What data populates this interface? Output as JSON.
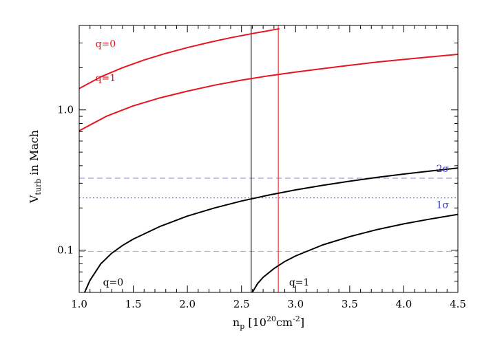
{
  "chart_data": {
    "type": "line",
    "title": "",
    "xlabel": {
      "main": "n",
      "sub": "p",
      "bracket_open": " [10",
      "sup1": "20",
      "unit": "cm",
      "sup2": "-2",
      "bracket_close": "]"
    },
    "ylabel": {
      "main": "V",
      "sub": "turb",
      "rest": " in Mach"
    },
    "xlim": [
      1.0,
      4.5
    ],
    "ylim": [
      0.05,
      4.0
    ],
    "yscale": "log",
    "grid": false,
    "x_ticks": [
      {
        "value": 1.0,
        "label": "1.0"
      },
      {
        "value": 1.5,
        "label": "1.5"
      },
      {
        "value": 2.0,
        "label": "2.0"
      },
      {
        "value": 2.5,
        "label": "2.5"
      },
      {
        "value": 3.0,
        "label": "3.0"
      },
      {
        "value": 3.5,
        "label": "3.5"
      },
      {
        "value": 4.0,
        "label": "4.0"
      },
      {
        "value": 4.5,
        "label": "4.5"
      }
    ],
    "y_ticks": [
      {
        "value": 0.1,
        "label": "0.1"
      },
      {
        "value": 1.0,
        "label": "1.0"
      }
    ],
    "series": [
      {
        "key": "red_q0",
        "color": "#e8141e",
        "width": 2,
        "x": [
          1.0,
          1.2,
          1.4,
          1.6,
          1.8,
          2.0,
          2.2,
          2.4,
          2.6,
          2.8,
          2.85
        ],
        "y": [
          1.42,
          1.72,
          2.0,
          2.27,
          2.53,
          2.78,
          3.03,
          3.27,
          3.5,
          3.73,
          3.79
        ]
      },
      {
        "key": "red_q1",
        "color": "#e8141e",
        "width": 2,
        "x": [
          1.0,
          1.25,
          1.5,
          1.75,
          2.0,
          2.25,
          2.5,
          2.75,
          3.0,
          3.25,
          3.5,
          3.75,
          4.0,
          4.25,
          4.5
        ],
        "y": [
          0.71,
          0.9,
          1.07,
          1.22,
          1.36,
          1.5,
          1.63,
          1.75,
          1.86,
          1.97,
          2.08,
          2.19,
          2.29,
          2.39,
          2.49
        ]
      },
      {
        "key": "black_q0",
        "color": "#000000",
        "width": 2,
        "x": [
          1.05,
          1.1,
          1.2,
          1.3,
          1.4,
          1.5,
          1.75,
          2.0,
          2.25,
          2.5,
          2.75,
          3.0,
          3.25,
          3.5,
          3.75,
          4.0,
          4.25,
          4.5
        ],
        "y": [
          0.05,
          0.061,
          0.08,
          0.095,
          0.108,
          0.12,
          0.148,
          0.175,
          0.2,
          0.224,
          0.247,
          0.269,
          0.29,
          0.31,
          0.33,
          0.349,
          0.367,
          0.385
        ]
      },
      {
        "key": "black_q1",
        "color": "#000000",
        "width": 2,
        "x": [
          2.6,
          2.65,
          2.7,
          2.8,
          2.9,
          3.0,
          3.25,
          3.5,
          3.75,
          4.0,
          4.25,
          4.5
        ],
        "y": [
          0.05,
          0.058,
          0.064,
          0.074,
          0.083,
          0.091,
          0.109,
          0.125,
          0.14,
          0.154,
          0.167,
          0.18
        ]
      }
    ],
    "hlines": [
      {
        "key": "two_sigma",
        "y": 0.326,
        "color": "#9a9ada",
        "dash": "8 5"
      },
      {
        "key": "one_sigma",
        "y": 0.236,
        "color": "#6a6ae8",
        "dash": "2 3"
      },
      {
        "key": "green",
        "y": 0.098,
        "color": "#7fdc7f",
        "dash": "8 5"
      }
    ],
    "vlines": [
      {
        "key": "black_vline",
        "x": 2.59,
        "color": "#000000"
      },
      {
        "key": "red_vline",
        "x": 2.84,
        "color": "#e8141e"
      }
    ],
    "annotations": [
      {
        "key": "label_red_q0",
        "text": "q=0",
        "color": "#e8141e",
        "x": 1.15,
        "y": 2.8
      },
      {
        "key": "label_red_q1",
        "text": "q=1",
        "color": "#e8141e",
        "x": 1.15,
        "y": 1.6
      },
      {
        "key": "label_black_q0",
        "text": "q=0",
        "color": "#000000",
        "x": 1.22,
        "y": 0.056
      },
      {
        "key": "label_black_q1",
        "text": "q=1",
        "color": "#000000",
        "x": 2.94,
        "y": 0.056
      },
      {
        "key": "label_two_sigma",
        "text": "2σ",
        "color": "#3a3ad0",
        "x": 4.3,
        "y": 0.36
      },
      {
        "key": "label_one_sigma",
        "text": "1σ",
        "color": "#3a3ad0",
        "x": 4.3,
        "y": 0.2
      }
    ]
  }
}
